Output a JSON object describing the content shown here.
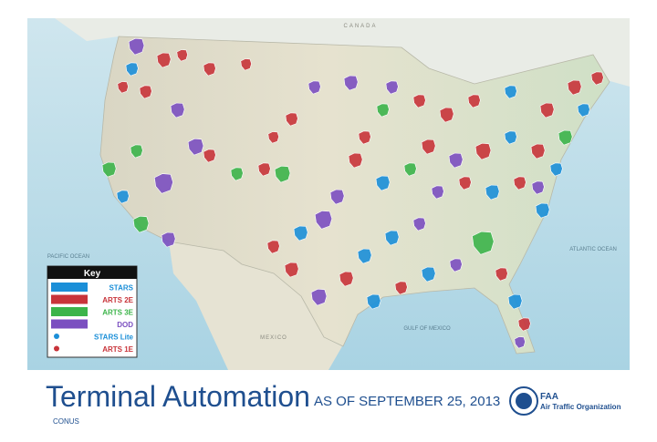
{
  "map": {
    "labels": {
      "north": "CANADA",
      "west": "PACIFIC OCEAN",
      "east": "ATLANTIC OCEAN",
      "gulf": "GULF OF MEXICO",
      "south": "MEXICO"
    }
  },
  "key": {
    "title": "Key",
    "items": [
      {
        "label": "STARS",
        "color": "#1b8fd8",
        "symbol": "box"
      },
      {
        "label": "ARTS 2E",
        "color": "#c8343a",
        "symbol": "box"
      },
      {
        "label": "ARTS 3E",
        "color": "#3cb44a",
        "symbol": "box"
      },
      {
        "label": "DOD",
        "color": "#7b4fc0",
        "symbol": "box"
      },
      {
        "label": "STARS Lite",
        "color": "#1b8fd8",
        "symbol": "dot"
      },
      {
        "label": "ARTS 1E",
        "color": "#c8343a",
        "symbol": "dot"
      }
    ]
  },
  "footer": {
    "title": "Terminal Automation",
    "date": "AS OF SEPTEMBER 25, 2013",
    "subtitle": "CONUS",
    "org": {
      "acronym": "FAA",
      "name": "Air Traffic Organization"
    }
  }
}
